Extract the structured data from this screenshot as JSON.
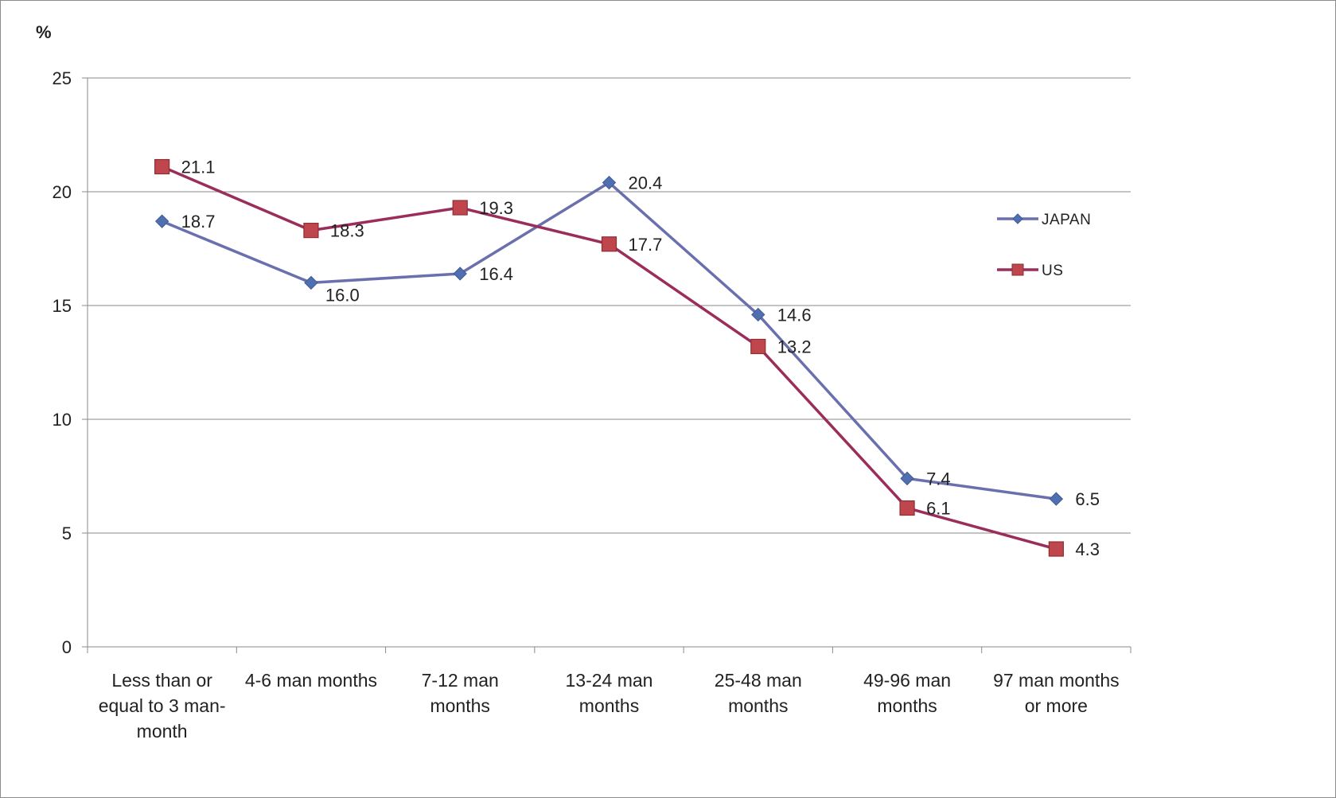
{
  "chart_data": {
    "type": "line",
    "ylabel": "%",
    "ylim": [
      0,
      25
    ],
    "yticks": [
      0,
      5,
      10,
      15,
      20,
      25
    ],
    "grid": true,
    "legend_position": "right",
    "categories": [
      [
        "Less than or",
        "equal to 3 man-",
        "month"
      ],
      [
        "4-6 man months"
      ],
      [
        "7-12 man",
        "months"
      ],
      [
        "13-24 man",
        "months"
      ],
      [
        "25-48 man",
        "months"
      ],
      [
        "49-96 man",
        "months"
      ],
      [
        "97 man months",
        "or more"
      ]
    ],
    "series": [
      {
        "name": "JAPAN",
        "color": "#4f6fb0",
        "line_color": "#6a6fae",
        "marker": "diamond",
        "values": [
          18.7,
          16.0,
          16.4,
          20.4,
          14.6,
          7.4,
          6.5
        ],
        "labels": [
          "18.7",
          "16.0",
          "16.4",
          "20.4",
          "14.6",
          "7.4",
          "6.5"
        ]
      },
      {
        "name": "US",
        "color": "#c0464d",
        "line_color": "#9b2d5a",
        "marker": "square",
        "values": [
          21.1,
          18.3,
          19.3,
          17.7,
          13.2,
          6.1,
          4.3
        ],
        "labels": [
          "21.1",
          "18.3",
          "19.3",
          "17.7",
          "13.2",
          "6.1",
          "4.3"
        ]
      }
    ]
  }
}
